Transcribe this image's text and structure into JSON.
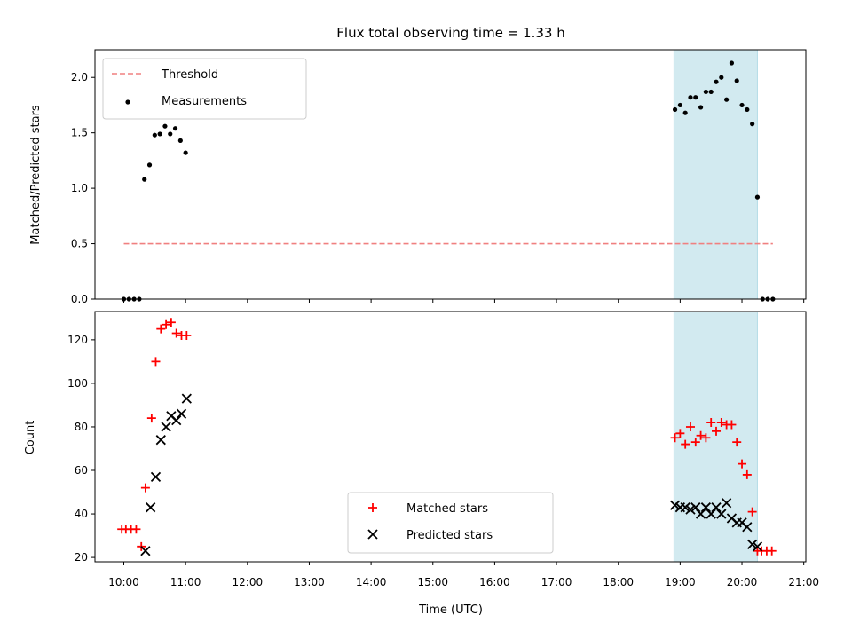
{
  "chart_data": [
    {
      "type": "scatter",
      "title": "Flux total observing time = 1.33 h",
      "xlabel": "",
      "ylabel": "Matched/Predicted stars",
      "xlim": [
        "09:32",
        "21:02"
      ],
      "ylim": [
        0,
        2.25
      ],
      "yticks": [
        0.0,
        0.5,
        1.0,
        1.5,
        2.0
      ],
      "ytick_labels": [
        "0.0",
        "0.5",
        "1.0",
        "1.5",
        "2.0"
      ],
      "shaded_region": [
        "18:54",
        "20:15"
      ],
      "legend": "top-left",
      "series": [
        {
          "name": "Threshold",
          "style": "dashed-line",
          "color": "#f08080",
          "x": [
            "10:00",
            "20:30"
          ],
          "y": [
            0.5,
            0.5
          ]
        },
        {
          "name": "Measurements",
          "style": "dot",
          "color": "#000000",
          "x": [
            "10:00",
            "10:05",
            "10:10",
            "10:15",
            "10:20",
            "10:25",
            "10:30",
            "10:35",
            "10:40",
            "10:45",
            "10:50",
            "10:55",
            "11:00",
            "18:55",
            "19:00",
            "19:05",
            "19:10",
            "19:15",
            "19:20",
            "19:25",
            "19:30",
            "19:35",
            "19:40",
            "19:45",
            "19:50",
            "19:55",
            "20:00",
            "20:05",
            "20:10",
            "20:15",
            "20:20",
            "20:25",
            "20:30"
          ],
          "y": [
            0,
            0,
            0,
            0,
            1.08,
            1.21,
            1.48,
            1.49,
            1.56,
            1.49,
            1.54,
            1.43,
            1.32,
            1.71,
            1.75,
            1.68,
            1.82,
            1.82,
            1.73,
            1.87,
            1.87,
            1.96,
            2.0,
            1.8,
            2.13,
            1.97,
            1.75,
            1.71,
            1.58,
            0.92,
            0,
            0,
            0
          ]
        }
      ]
    },
    {
      "type": "scatter",
      "title": "",
      "xlabel": "Time (UTC)",
      "ylabel": "Count",
      "xlim": [
        "09:32",
        "21:02"
      ],
      "ylim": [
        18,
        133
      ],
      "yticks": [
        20,
        40,
        60,
        80,
        100,
        120
      ],
      "xtick_labels": [
        "10:00",
        "11:00",
        "12:00",
        "13:00",
        "14:00",
        "15:00",
        "16:00",
        "17:00",
        "18:00",
        "19:00",
        "20:00",
        "21:00"
      ],
      "shaded_region": [
        "18:54",
        "20:15"
      ],
      "legend": "lower-center",
      "series": [
        {
          "name": "Matched stars",
          "marker": "+",
          "color": "#ff0000",
          "x": [
            "09:58",
            "10:02",
            "10:07",
            "10:12",
            "10:17",
            "10:21",
            "10:27",
            "10:31",
            "10:36",
            "10:41",
            "10:46",
            "10:51",
            "10:56",
            "11:01",
            "18:55",
            "19:00",
            "19:05",
            "19:10",
            "19:15",
            "19:20",
            "19:25",
            "19:30",
            "19:35",
            "19:40",
            "19:45",
            "19:50",
            "19:55",
            "20:00",
            "20:05",
            "20:10",
            "20:15",
            "20:19",
            "20:24",
            "20:29"
          ],
          "y": [
            33,
            33,
            33,
            33,
            25,
            52,
            84,
            110,
            125,
            127,
            128,
            123,
            122,
            122,
            75,
            77,
            72,
            80,
            73,
            76,
            75,
            82,
            78,
            82,
            81,
            81,
            73,
            63,
            58,
            41,
            23,
            23,
            23,
            23
          ]
        },
        {
          "name": "Predicted stars",
          "marker": "x",
          "color": "#000000",
          "x": [
            "10:21",
            "10:26",
            "10:31",
            "10:36",
            "10:41",
            "10:46",
            "10:51",
            "10:56",
            "11:01",
            "18:55",
            "19:00",
            "19:05",
            "19:10",
            "19:15",
            "19:20",
            "19:25",
            "19:30",
            "19:35",
            "19:40",
            "19:45",
            "19:50",
            "19:55",
            "20:00",
            "20:05",
            "20:10",
            "20:15"
          ],
          "y": [
            23,
            43,
            57,
            74,
            80,
            85,
            83,
            86,
            93,
            44,
            43,
            43,
            42,
            43,
            40,
            43,
            40,
            43,
            40,
            45,
            38,
            36,
            36,
            34,
            26,
            25
          ]
        }
      ]
    }
  ]
}
